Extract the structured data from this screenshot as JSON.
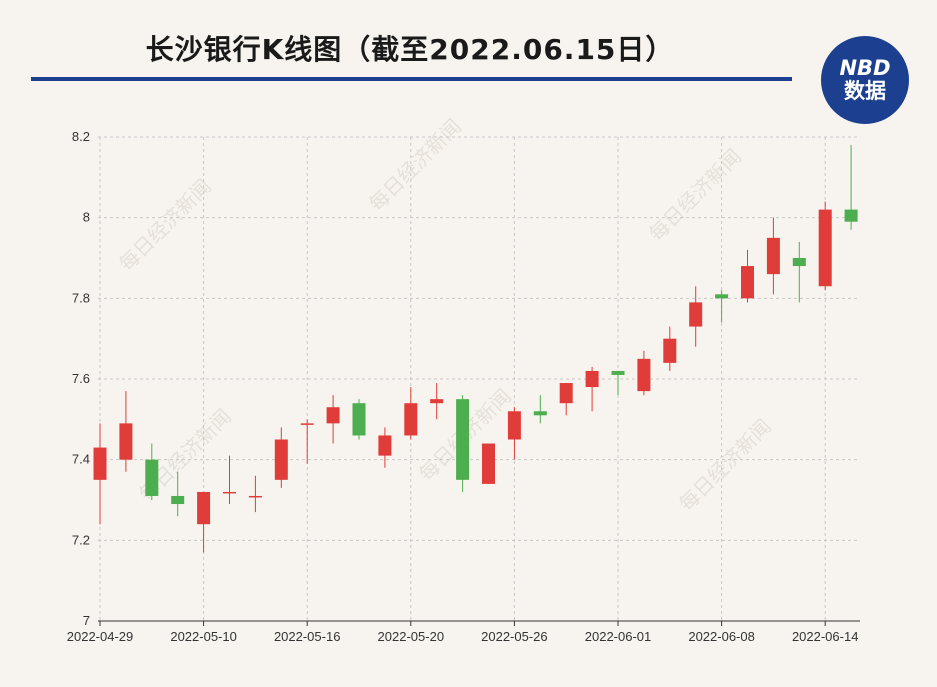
{
  "header": {
    "title": "长沙银行K线图（截至2022.06.15日）"
  },
  "logo": {
    "line1": "NBD",
    "line2": "数据",
    "color": "#1c3f8f"
  },
  "watermark": "每日经济新闻",
  "colors": {
    "up": "#e03c39",
    "down": "#4cae4f",
    "grid": "#c8c8c8",
    "axis": "#333333"
  },
  "chart_data": {
    "type": "candlestick",
    "title": "长沙银行K线图（截至2022.06.15日）",
    "xlabel": "",
    "ylabel": "",
    "ylim": [
      7,
      8.2
    ],
    "yticks": [
      7,
      7.2,
      7.4,
      7.6,
      7.8,
      8,
      8.2
    ],
    "ytick_labels": [
      "7",
      "7.2",
      "7.4",
      "7.6",
      "7.8",
      "8",
      "8.2"
    ],
    "xtick_labels": [
      "2022-04-29",
      "2022-05-10",
      "2022-05-16",
      "2022-05-20",
      "2022-05-26",
      "2022-06-01",
      "2022-06-08",
      "2022-06-14"
    ],
    "xtick_index": [
      0,
      4,
      8,
      12,
      16,
      20,
      24,
      28
    ],
    "grid": true,
    "candles": [
      {
        "o": 7.35,
        "h": 7.49,
        "l": 7.24,
        "c": 7.43
      },
      {
        "o": 7.4,
        "h": 7.57,
        "l": 7.37,
        "c": 7.49
      },
      {
        "o": 7.4,
        "h": 7.44,
        "l": 7.3,
        "c": 7.31
      },
      {
        "o": 7.31,
        "h": 7.37,
        "l": 7.26,
        "c": 7.29
      },
      {
        "o": 7.24,
        "h": 7.32,
        "l": 7.17,
        "c": 7.32
      },
      {
        "o": 7.32,
        "h": 7.41,
        "l": 7.29,
        "c": 7.32
      },
      {
        "o": 7.31,
        "h": 7.36,
        "l": 7.27,
        "c": 7.31
      },
      {
        "o": 7.35,
        "h": 7.48,
        "l": 7.33,
        "c": 7.45
      },
      {
        "o": 7.49,
        "h": 7.5,
        "l": 7.39,
        "c": 7.49
      },
      {
        "o": 7.49,
        "h": 7.56,
        "l": 7.44,
        "c": 7.53
      },
      {
        "o": 7.54,
        "h": 7.55,
        "l": 7.45,
        "c": 7.46
      },
      {
        "o": 7.41,
        "h": 7.48,
        "l": 7.38,
        "c": 7.46
      },
      {
        "o": 7.46,
        "h": 7.58,
        "l": 7.45,
        "c": 7.54
      },
      {
        "o": 7.54,
        "h": 7.59,
        "l": 7.5,
        "c": 7.55
      },
      {
        "o": 7.55,
        "h": 7.56,
        "l": 7.32,
        "c": 7.35
      },
      {
        "o": 7.34,
        "h": 7.44,
        "l": 7.34,
        "c": 7.44
      },
      {
        "o": 7.45,
        "h": 7.53,
        "l": 7.4,
        "c": 7.52
      },
      {
        "o": 7.52,
        "h": 7.56,
        "l": 7.49,
        "c": 7.51
      },
      {
        "o": 7.54,
        "h": 7.59,
        "l": 7.51,
        "c": 7.59
      },
      {
        "o": 7.58,
        "h": 7.63,
        "l": 7.52,
        "c": 7.62
      },
      {
        "o": 7.62,
        "h": 7.62,
        "l": 7.56,
        "c": 7.61
      },
      {
        "o": 7.57,
        "h": 7.67,
        "l": 7.56,
        "c": 7.65
      },
      {
        "o": 7.64,
        "h": 7.73,
        "l": 7.62,
        "c": 7.7
      },
      {
        "o": 7.73,
        "h": 7.83,
        "l": 7.68,
        "c": 7.79
      },
      {
        "o": 7.81,
        "h": 7.82,
        "l": 7.74,
        "c": 7.8
      },
      {
        "o": 7.8,
        "h": 7.92,
        "l": 7.79,
        "c": 7.88
      },
      {
        "o": 7.86,
        "h": 8.0,
        "l": 7.81,
        "c": 7.95
      },
      {
        "o": 7.9,
        "h": 7.94,
        "l": 7.79,
        "c": 7.88
      },
      {
        "o": 7.83,
        "h": 8.04,
        "l": 7.82,
        "c": 8.02
      },
      {
        "o": 8.02,
        "h": 8.18,
        "l": 7.97,
        "c": 7.99
      }
    ]
  }
}
